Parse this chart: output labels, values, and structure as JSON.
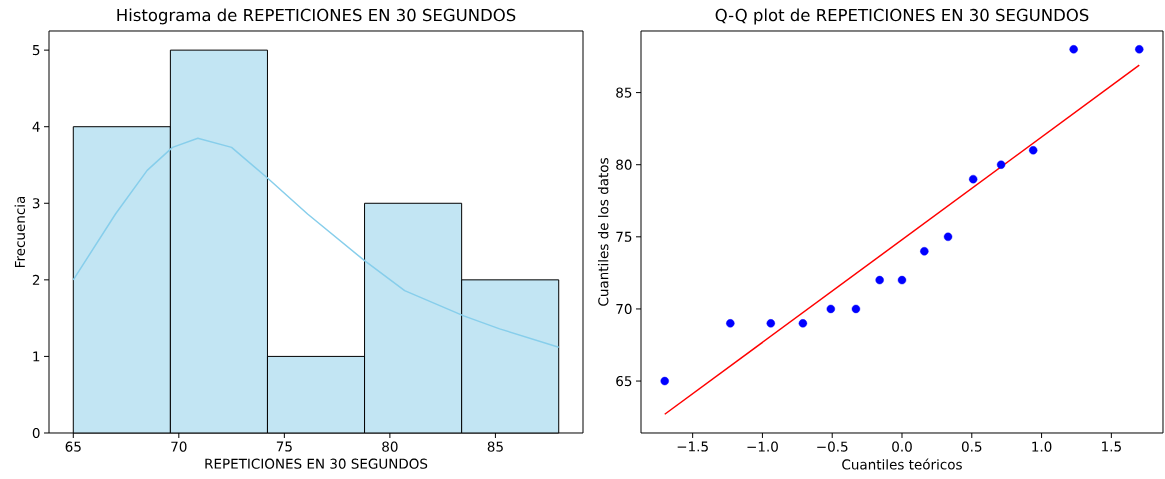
{
  "chart_data": [
    {
      "type": "histogram",
      "title": "Histograma de REPETICIONES EN 30 SEGUNDOS",
      "xlabel": "REPETICIONES EN 30 SEGUNDOS",
      "ylabel": "Frecuencia",
      "series": [
        {
          "bins": [
            65,
            69.6,
            74.2,
            78.8,
            83.4,
            88
          ],
          "values": [
            4,
            5,
            1,
            3,
            2
          ],
          "color": "#c2e5f3"
        },
        {
          "type": "line",
          "x": [
            65,
            67.0,
            68.5,
            69.7,
            70.9,
            72.5,
            74.2,
            76.1,
            78.8,
            80.7,
            83.5,
            85.2,
            88
          ],
          "values": [
            2.0,
            2.86,
            3.43,
            3.73,
            3.85,
            3.73,
            3.33,
            2.86,
            2.25,
            1.86,
            1.53,
            1.36,
            1.12
          ],
          "color": "#87ceeb"
        }
      ],
      "xlim": [
        63.85,
        89.15
      ],
      "ylim": [
        0,
        5.25
      ],
      "xticks": [
        65,
        70,
        75,
        80,
        85
      ],
      "yticks": [
        0,
        1,
        2,
        3,
        4,
        5
      ],
      "grid": false
    },
    {
      "type": "scatter",
      "title": "Q-Q plot de REPETICIONES EN 30 SEGUNDOS",
      "xlabel": "Cuantiles teóricos",
      "ylabel": "Cuantiles de los datos",
      "series": [
        {
          "x": [
            -1.7,
            -1.23,
            -0.94,
            -0.71,
            -0.51,
            -0.33,
            -0.16,
            0,
            0.16,
            0.33,
            0.51,
            0.71,
            0.94,
            1.23,
            1.7
          ],
          "values": [
            65,
            69,
            69,
            69,
            70,
            70,
            72,
            72,
            74,
            75,
            79,
            80,
            81,
            88,
            88
          ],
          "color": "#0000ff",
          "marker": "circle"
        },
        {
          "type": "line",
          "x": [
            -1.7,
            1.7
          ],
          "values": [
            62.7,
            86.9
          ],
          "color": "#ff0000"
        }
      ],
      "xlim": [
        -1.87,
        1.87
      ],
      "ylim": [
        61.4,
        89.27
      ],
      "xticks": [
        {
          "value": -1.5,
          "label": "−1.5"
        },
        {
          "value": -1.0,
          "label": "−1.0"
        },
        {
          "value": -0.5,
          "label": "−0.5"
        },
        {
          "value": 0,
          "label": "0.0"
        },
        {
          "value": 0.5,
          "label": "0.5"
        },
        {
          "value": 1.0,
          "label": "1.0"
        },
        {
          "value": 1.5,
          "label": "1.5"
        }
      ],
      "yticks": [
        65,
        70,
        75,
        80,
        85
      ],
      "grid": false
    }
  ]
}
